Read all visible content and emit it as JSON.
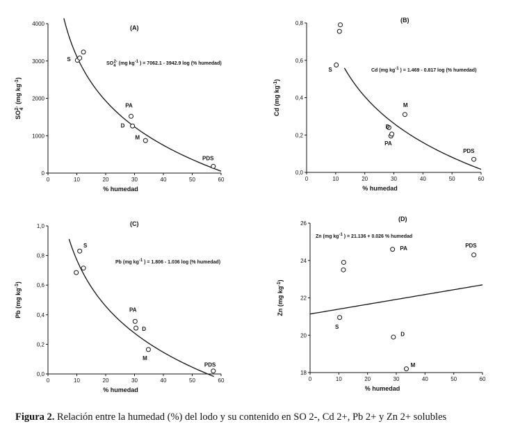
{
  "caption": {
    "lead": "Figura 2.",
    "text": "Relación entre la humedad (%) del lodo y su contenido en SO 2-, Cd 2+, Pb 2+ y Zn 2+ solubles"
  },
  "chart_data": [
    {
      "type": "scatter",
      "panel_label": "(A)",
      "xlabel": "% humedad",
      "ylabel": "SO42- (mg kg-1)",
      "ylabel_parts": {
        "main": "SO",
        "sub": "4",
        "sup": "2-",
        "unit": "(mg kg",
        "unit_sup": "-1",
        "unit_end": ")"
      },
      "equation": "SO42- (mg kg-1) = 7062.1 - 3942.9 log (% humedad)",
      "equation_parts": {
        "pre": "SO",
        "sub": "4",
        "sup": "2-",
        "mid": " (mg kg",
        "mid_sup": "-1",
        "rest": " ) = 7062.1 - 3942.9 log (% humedad)"
      },
      "xlim": [
        0,
        60
      ],
      "ylim": [
        0,
        4000
      ],
      "xticks": [
        0,
        10,
        20,
        30,
        40,
        50,
        60
      ],
      "yticks": [
        0,
        1000,
        2000,
        3000,
        4000
      ],
      "ytick_labels": [
        "0",
        "1000",
        "2000",
        "3000",
        "4000"
      ],
      "fit": {
        "kind": "log",
        "a": 7062.1,
        "b": -3942.9,
        "x_from": 5.5,
        "x_to": 60
      },
      "points": [
        {
          "x": 10.2,
          "y": 3020
        },
        {
          "x": 11.0,
          "y": 3080
        },
        {
          "x": 12.3,
          "y": 3240
        },
        {
          "x": 28.8,
          "y": 1520
        },
        {
          "x": 29.3,
          "y": 1260
        },
        {
          "x": 33.8,
          "y": 870
        },
        {
          "x": 57.3,
          "y": 180
        }
      ],
      "point_labels": [
        {
          "text": "S",
          "x": 6.6,
          "y": 3000
        },
        {
          "text": "PA",
          "x": 26.8,
          "y": 1760
        },
        {
          "text": "D",
          "x": 25.2,
          "y": 1220
        },
        {
          "text": "M",
          "x": 30.2,
          "y": 900
        },
        {
          "text": "PDS",
          "x": 53.5,
          "y": 340
        }
      ]
    },
    {
      "type": "scatter",
      "panel_label": "(B)",
      "xlabel": "% humedad",
      "ylabel": "Cd (mg kg-1)",
      "ylabel_parts": {
        "main": "Cd",
        "sub": "",
        "sup": "",
        "unit": "(mg kg",
        "unit_sup": "-1",
        "unit_end": ")"
      },
      "equation": "Cd (mg kg-1) = 1.469 - 0.817 log (% humedad)",
      "equation_parts": {
        "pre": "Cd",
        "sub": "",
        "sup": "",
        "mid": " (mg kg",
        "mid_sup": "-1",
        "rest": " ) = 1.469 - 0.817 log (% humedad)"
      },
      "xlim": [
        0,
        60
      ],
      "ylim": [
        0,
        0.8
      ],
      "xticks": [
        0,
        10,
        20,
        30,
        40,
        50,
        60
      ],
      "yticks": [
        0,
        0.2,
        0.4,
        0.6,
        0.8
      ],
      "ytick_labels": [
        "0,0",
        "0,2",
        "0,4",
        "0,6",
        "0,8"
      ],
      "fit": {
        "kind": "log",
        "a": 1.469,
        "b": -0.817,
        "x_from": 13.0,
        "x_to": 60
      },
      "points": [
        {
          "x": 10.2,
          "y": 0.575
        },
        {
          "x": 11.3,
          "y": 0.755
        },
        {
          "x": 11.6,
          "y": 0.79
        },
        {
          "x": 28.3,
          "y": 0.24
        },
        {
          "x": 29.0,
          "y": 0.195
        },
        {
          "x": 29.3,
          "y": 0.205
        },
        {
          "x": 33.8,
          "y": 0.31
        },
        {
          "x": 57.5,
          "y": 0.07
        }
      ],
      "point_labels": [
        {
          "text": "S",
          "x": 7.5,
          "y": 0.54
        },
        {
          "text": "M",
          "x": 33.2,
          "y": 0.35
        },
        {
          "text": "D",
          "x": 27.2,
          "y": 0.235
        },
        {
          "text": "PA",
          "x": 26.8,
          "y": 0.145
        },
        {
          "text": "PDS",
          "x": 53.8,
          "y": 0.105
        }
      ]
    },
    {
      "type": "scatter",
      "panel_label": "(C)",
      "xlabel": "% humedad",
      "ylabel": "Pb (mg kg-1)",
      "ylabel_parts": {
        "main": "Pb",
        "sub": "",
        "sup": "",
        "unit": "(mg kg",
        "unit_sup": "-1",
        "unit_end": ")"
      },
      "equation": "Pb (mg kg-1) = 1.806 - 1.036 log (% humedad)",
      "equation_parts": {
        "pre": "Pb",
        "sub": "",
        "sup": "",
        "mid": " (mg kg",
        "mid_sup": "-1",
        "rest": " ) = 1.806 - 1.036 log (% humedad)"
      },
      "xlim": [
        0,
        60
      ],
      "ylim": [
        0,
        1.0
      ],
      "xticks": [
        0,
        10,
        20,
        30,
        40,
        50,
        60
      ],
      "yticks": [
        0,
        0.2,
        0.4,
        0.6,
        0.8,
        1.0
      ],
      "ytick_labels": [
        "0,0",
        "0,2",
        "0,4",
        "0,6",
        "0,8",
        "1,0"
      ],
      "fit": {
        "kind": "log",
        "a": 1.806,
        "b": -1.036,
        "x_from": 7.3,
        "x_to": 57.5
      },
      "points": [
        {
          "x": 9.8,
          "y": 0.685
        },
        {
          "x": 11.0,
          "y": 0.83
        },
        {
          "x": 12.3,
          "y": 0.715
        },
        {
          "x": 30.2,
          "y": 0.355
        },
        {
          "x": 30.5,
          "y": 0.31
        },
        {
          "x": 34.8,
          "y": 0.165
        },
        {
          "x": 57.3,
          "y": 0.02
        }
      ],
      "point_labels": [
        {
          "text": "S",
          "x": 12.3,
          "y": 0.855
        },
        {
          "text": "PA",
          "x": 28.2,
          "y": 0.42
        },
        {
          "text": "D",
          "x": 32.6,
          "y": 0.29
        },
        {
          "text": "M",
          "x": 32.8,
          "y": 0.095
        },
        {
          "text": "PDS",
          "x": 54.2,
          "y": 0.05
        }
      ]
    },
    {
      "type": "scatter",
      "panel_label": "(D)",
      "xlabel": "% humedad",
      "ylabel": "Zn (mg kg-1)",
      "ylabel_parts": {
        "main": "Zn",
        "sub": "",
        "sup": "",
        "unit": "(mg kg",
        "unit_sup": "-1",
        "unit_end": ")"
      },
      "equation": "Zn (mg kg-1) = 21.136 + 0.026 % humedad",
      "equation_parts": {
        "pre": "Zn",
        "sub": "",
        "sup": "",
        "mid": " (mg kg",
        "mid_sup": "-1",
        "rest": " ) = 21.136 + 0.026 % humedad"
      },
      "xlim": [
        0,
        60
      ],
      "ylim": [
        18,
        26
      ],
      "xticks": [
        0,
        10,
        20,
        30,
        40,
        50,
        60
      ],
      "yticks": [
        18,
        20,
        22,
        24,
        26
      ],
      "ytick_labels": [
        "18",
        "20",
        "22",
        "24",
        "26"
      ],
      "fit": {
        "kind": "linear",
        "a": 21.136,
        "b": 0.026,
        "x_from": 0,
        "x_to": 60
      },
      "points": [
        {
          "x": 10.3,
          "y": 20.95
        },
        {
          "x": 11.6,
          "y": 23.5
        },
        {
          "x": 11.7,
          "y": 23.9
        },
        {
          "x": 28.7,
          "y": 24.6
        },
        {
          "x": 29.0,
          "y": 19.9
        },
        {
          "x": 33.5,
          "y": 18.2
        },
        {
          "x": 57.0,
          "y": 24.3
        }
      ],
      "point_labels": [
        {
          "text": "S",
          "x": 8.7,
          "y": 20.35
        },
        {
          "text": "PA",
          "x": 31.3,
          "y": 24.55
        },
        {
          "text": "D",
          "x": 31.5,
          "y": 19.95
        },
        {
          "text": "M",
          "x": 35.0,
          "y": 18.3
        },
        {
          "text": "PDS",
          "x": 54.0,
          "y": 24.7
        }
      ]
    }
  ]
}
